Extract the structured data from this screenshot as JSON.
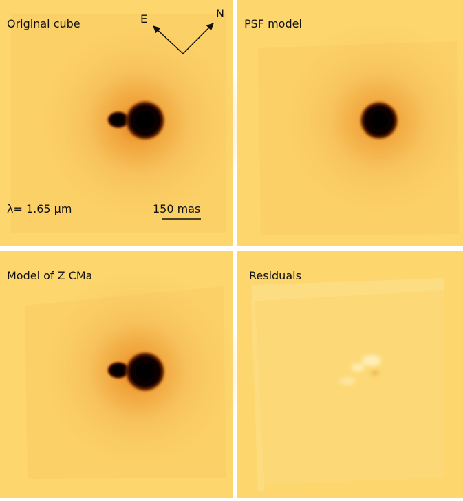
{
  "panels": [
    {
      "title": "Original cube"
    },
    {
      "title": "PSF model"
    },
    {
      "title": "Model of Z CMa"
    },
    {
      "title": "Residuals"
    }
  ],
  "compass": {
    "east": "E",
    "north": "N"
  },
  "wavelength_label": "λ= 1.65 μm",
  "scale_bar_label": "150 mas"
}
